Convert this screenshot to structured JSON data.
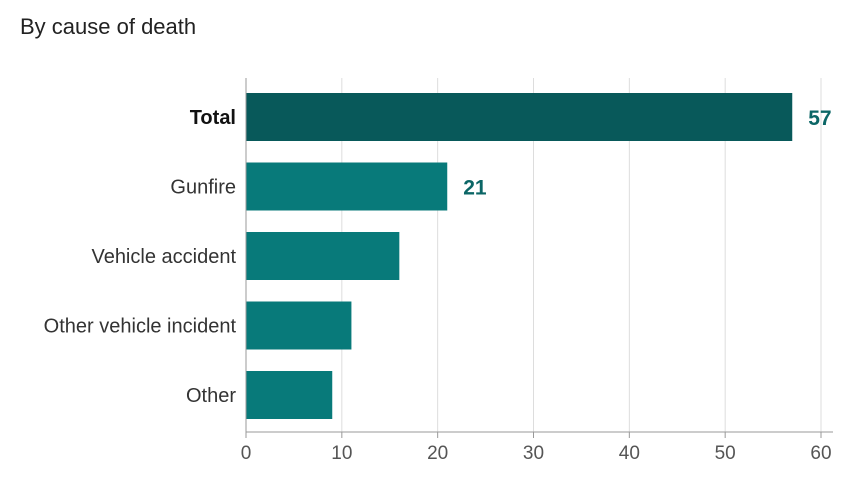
{
  "chart_data": {
    "type": "bar",
    "orientation": "horizontal",
    "title": "By cause of death",
    "categories": [
      "Total",
      "Gunfire",
      "Vehicle accident",
      "Other vehicle incident",
      "Other"
    ],
    "values": [
      57,
      21,
      16,
      11,
      9
    ],
    "data_labels": [
      "57",
      "21",
      "",
      "",
      ""
    ],
    "highlighted_category": "Total",
    "xlim": [
      0,
      60
    ],
    "xticks": [
      0,
      10,
      20,
      30,
      40,
      50,
      60
    ],
    "xlabel": "",
    "ylabel": "",
    "grid": true,
    "colors": {
      "total_bar": "#08595a",
      "bar": "#087a7a",
      "label": "#0b6666",
      "grid": "#dddddd",
      "axis": "#999999",
      "text": "#333333"
    }
  }
}
